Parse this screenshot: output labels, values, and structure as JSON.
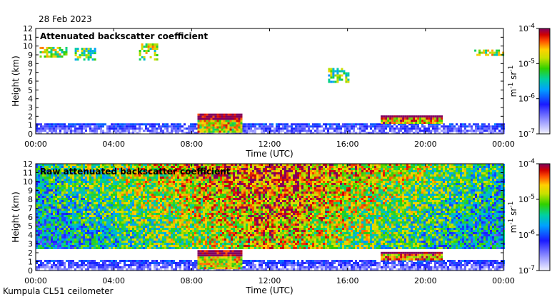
{
  "header": {
    "date": "28 Feb 2023"
  },
  "footer": {
    "site": "Kumpula CL51 ceilometer"
  },
  "chart_data": [
    {
      "type": "heatmap",
      "title": "Attenuated backscatter coefficient",
      "xlabel": "Time (UTC)",
      "ylabel": "Height (km)",
      "xticks": [
        "00:00",
        "04:00",
        "08:00",
        "12:00",
        "16:00",
        "20:00",
        "00:00"
      ],
      "yticks": [
        "0",
        "1",
        "2",
        "3",
        "4",
        "5",
        "6",
        "7",
        "8",
        "9",
        "10",
        "11",
        "12"
      ],
      "ylim": [
        0,
        12
      ],
      "xlim_hours": [
        0,
        24
      ],
      "colorbar": {
        "label": "m-1 sr-1",
        "ticks": [
          "10-4",
          "10-5",
          "10-6",
          "10-7"
        ],
        "range_log10": [
          -7,
          -4
        ]
      },
      "features": [
        {
          "name": "boundary-layer",
          "t0": 0,
          "t1": 24,
          "h0": 0,
          "h1": 1.2,
          "level": -6.4
        },
        {
          "name": "low-cloud-morning",
          "t0": 8.3,
          "t1": 10.5,
          "h0": 0.2,
          "h1": 2.3,
          "level": -4.8
        },
        {
          "name": "low-cloud-evening",
          "t0": 17.7,
          "t1": 20.8,
          "h0": 1.2,
          "h1": 2.1,
          "level": -4.6
        },
        {
          "name": "high-cloud-1",
          "t0": 0.2,
          "t1": 1.6,
          "h0": 8.7,
          "h1": 9.9,
          "level": -5.0
        },
        {
          "name": "high-cloud-2",
          "t0": 2.0,
          "t1": 3.0,
          "h0": 8.5,
          "h1": 9.8,
          "level": -5.2
        },
        {
          "name": "high-cloud-3",
          "t0": 5.3,
          "t1": 6.2,
          "h0": 8.5,
          "h1": 10.3,
          "level": -5.0
        },
        {
          "name": "high-cloud-4",
          "t0": 15.0,
          "t1": 16.0,
          "h0": 6.0,
          "h1": 7.5,
          "level": -5.2
        },
        {
          "name": "high-cloud-5",
          "t0": 22.5,
          "t1": 24.0,
          "h0": 8.9,
          "h1": 9.6,
          "level": -5.0
        }
      ]
    },
    {
      "type": "heatmap",
      "title": "Raw attenuated backscatter coefficient",
      "xlabel": "Time (UTC)",
      "ylabel": "Height (km)",
      "xticks": [
        "00:00",
        "04:00",
        "08:00",
        "12:00",
        "16:00",
        "20:00",
        "00:00"
      ],
      "yticks": [
        "0",
        "1",
        "2",
        "3",
        "4",
        "5",
        "6",
        "7",
        "8",
        "9",
        "10",
        "11",
        "12"
      ],
      "ylim": [
        0,
        12
      ],
      "xlim_hours": [
        0,
        24
      ],
      "colorbar": {
        "label": "m-1 sr-1",
        "ticks": [
          "10-4",
          "10-5",
          "10-6",
          "10-7"
        ],
        "range_log10": [
          -7,
          -4
        ]
      },
      "features": [
        {
          "name": "noise-field",
          "t0": 0,
          "t1": 24,
          "h0": 2.5,
          "h1": 12,
          "level": -5.6
        },
        {
          "name": "boundary-layer",
          "t0": 0,
          "t1": 24,
          "h0": 0,
          "h1": 1.2,
          "level": -6.4
        },
        {
          "name": "low-cloud-morning",
          "t0": 8.3,
          "t1": 10.5,
          "h0": 0.2,
          "h1": 2.3,
          "level": -4.8
        },
        {
          "name": "low-cloud-evening",
          "t0": 17.7,
          "t1": 20.8,
          "h0": 1.2,
          "h1": 2.1,
          "level": -4.6
        }
      ]
    }
  ]
}
